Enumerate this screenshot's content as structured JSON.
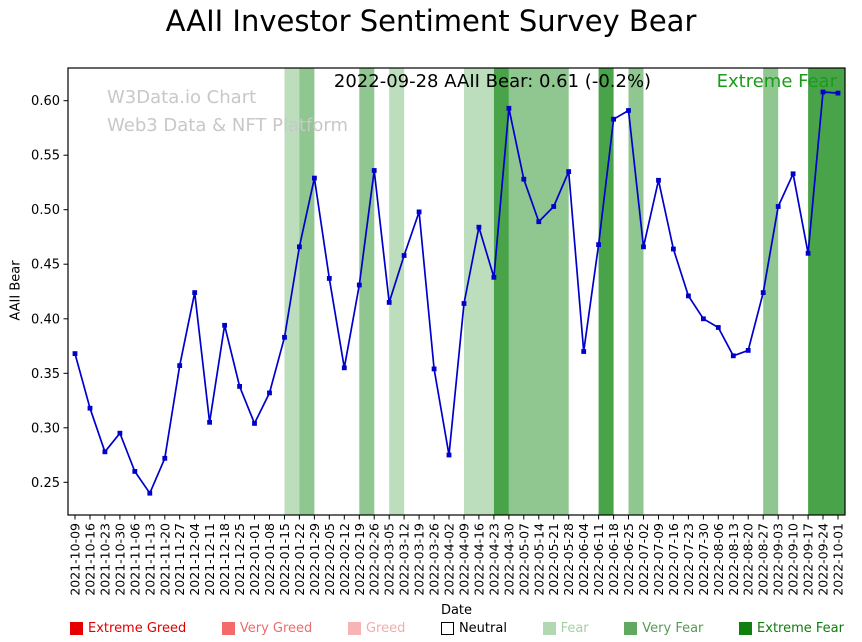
{
  "title": "AAII Investor Sentiment Survey Bear",
  "annotation": {
    "text": "2022-09-28 AAII Bear: 0.61 (-0.2%)",
    "status": "Extreme Fear",
    "status_color": "#1a9c1a"
  },
  "watermark": {
    "line1": "W3Data.io Chart",
    "line2": "Web3 Data & NFT Platform"
  },
  "chart_data": {
    "type": "line",
    "title": "AAII Investor Sentiment Survey Bear",
    "xlabel": "Date",
    "ylabel": "AAII Bear",
    "ylim": [
      0.22,
      0.63
    ],
    "yticks": [
      0.25,
      0.3,
      0.35,
      0.4,
      0.45,
      0.5,
      0.55,
      0.6
    ],
    "grid": false,
    "line_color": "#0000cc",
    "x": [
      "2021-10-09",
      "2021-10-16",
      "2021-10-23",
      "2021-10-30",
      "2021-11-06",
      "2021-11-13",
      "2021-11-20",
      "2021-11-27",
      "2021-12-04",
      "2021-12-11",
      "2021-12-18",
      "2021-12-25",
      "2022-01-01",
      "2022-01-08",
      "2022-01-15",
      "2022-01-22",
      "2022-01-29",
      "2022-02-05",
      "2022-02-12",
      "2022-02-19",
      "2022-02-26",
      "2022-03-05",
      "2022-03-12",
      "2022-03-19",
      "2022-03-26",
      "2022-04-02",
      "2022-04-09",
      "2022-04-16",
      "2022-04-23",
      "2022-04-30",
      "2022-05-07",
      "2022-05-14",
      "2022-05-21",
      "2022-05-28",
      "2022-06-04",
      "2022-06-11",
      "2022-06-18",
      "2022-06-25",
      "2022-07-02",
      "2022-07-09",
      "2022-07-16",
      "2022-07-23",
      "2022-07-30",
      "2022-08-06",
      "2022-08-13",
      "2022-08-20",
      "2022-08-27",
      "2022-09-03",
      "2022-09-10",
      "2022-09-17",
      "2022-09-24",
      "2022-10-01"
    ],
    "values": [
      0.368,
      0.318,
      0.278,
      0.295,
      0.26,
      0.24,
      0.272,
      0.357,
      0.424,
      0.305,
      0.394,
      0.338,
      0.304,
      0.332,
      0.383,
      0.466,
      0.529,
      0.437,
      0.355,
      0.431,
      0.536,
      0.415,
      0.458,
      0.498,
      0.354,
      0.275,
      0.414,
      0.484,
      0.438,
      0.593,
      0.528,
      0.489,
      0.503,
      0.535,
      0.37,
      0.468,
      0.583,
      0.591,
      0.466,
      0.527,
      0.464,
      0.421,
      0.4,
      0.392,
      0.366,
      0.371,
      0.424,
      0.503,
      0.533,
      0.46,
      0.608,
      0.607
    ],
    "bands": [
      {
        "start": "2022-01-15",
        "end": "2022-01-22",
        "level": "fear"
      },
      {
        "start": "2022-01-22",
        "end": "2022-01-29",
        "level": "very_fear"
      },
      {
        "start": "2022-02-19",
        "end": "2022-02-26",
        "level": "very_fear"
      },
      {
        "start": "2022-03-05",
        "end": "2022-03-12",
        "level": "fear"
      },
      {
        "start": "2022-04-09",
        "end": "2022-04-23",
        "level": "fear"
      },
      {
        "start": "2022-04-23",
        "end": "2022-04-30",
        "level": "extreme_fear"
      },
      {
        "start": "2022-04-30",
        "end": "2022-05-28",
        "level": "very_fear"
      },
      {
        "start": "2022-06-11",
        "end": "2022-06-18",
        "level": "extreme_fear"
      },
      {
        "start": "2022-06-25",
        "end": "2022-07-02",
        "level": "very_fear"
      },
      {
        "start": "2022-08-27",
        "end": "2022-09-03",
        "level": "very_fear"
      },
      {
        "start": "2022-09-17",
        "end": "2022-10-01",
        "level": "extreme_fear"
      }
    ],
    "band_colors": {
      "fear": "#bcdebc",
      "very_fear": "#90c690",
      "extreme_fear": "#49a449"
    }
  },
  "legend": {
    "items": [
      {
        "id": "extreme-greed",
        "label": "Extreme Greed",
        "swatch": "#e60000",
        "text_color": "#e00000"
      },
      {
        "id": "very-greed",
        "label": "Very Greed",
        "swatch": "#f46a6a",
        "text_color": "#ed6b6b"
      },
      {
        "id": "greed",
        "label": "Greed",
        "swatch": "#f8b4b4",
        "text_color": "#f3abab"
      },
      {
        "id": "neutral",
        "label": "Neutral",
        "swatch": "#ffffff",
        "text_color": "#000000"
      },
      {
        "id": "fear",
        "label": "Fear",
        "swatch": "#b2d8b2",
        "text_color": "#a3d0a3"
      },
      {
        "id": "very-fear",
        "label": "Very Fear",
        "swatch": "#61a861",
        "text_color": "#559b55"
      },
      {
        "id": "extreme-fear",
        "label": "Extreme Fear",
        "swatch": "#0f7f0f",
        "text_color": "#0c7c0c"
      }
    ]
  }
}
